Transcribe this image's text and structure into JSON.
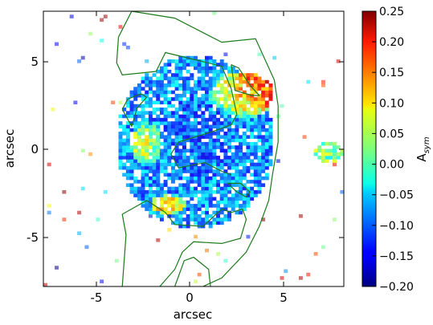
{
  "chart_data": {
    "type": "heatmap",
    "xlabel": "arcsec",
    "ylabel": "arcsec",
    "colorbar_label": "A",
    "colorbar_label_sub": "sym",
    "xlim": [
      -8,
      8
    ],
    "ylim": [
      -8,
      8
    ],
    "x_ticks": [
      -5,
      0,
      5
    ],
    "x_tick_labels": [
      "-5",
      "0",
      "5"
    ],
    "y_ticks": [
      5,
      0,
      -5
    ],
    "y_tick_labels": [
      "5",
      "0",
      "-5"
    ],
    "colorbar_range": [
      -0.2,
      0.25
    ],
    "colorbar_ticks": [
      0.25,
      0.2,
      0.15,
      0.1,
      0.05,
      0.0,
      -0.05,
      -0.1,
      -0.15,
      -0.2
    ],
    "colorbar_tick_labels": [
      "0.25",
      "0.20",
      "0.15",
      "0.10",
      "0.05",
      "0.00",
      "−0.05",
      "−0.10",
      "−0.15",
      "−0.20"
    ],
    "colormap": "jet",
    "grid": false,
    "contour_color": "#1a7a1a",
    "map_regions": [
      {
        "cx": 0.0,
        "cy": 0.3,
        "rx": 4.2,
        "ry": 5.0,
        "value": -0.08
      },
      {
        "cx": 0.2,
        "cy": 0.5,
        "rx": 2.2,
        "ry": 2.6,
        "value": -0.13
      },
      {
        "cx": 2.4,
        "cy": 3.0,
        "rx": 1.8,
        "ry": 1.4,
        "value": 0.16
      },
      {
        "cx": -2.6,
        "cy": 0.2,
        "rx": 0.9,
        "ry": 1.3,
        "value": 0.14
      },
      {
        "cx": -1.4,
        "cy": -3.3,
        "rx": 1.0,
        "ry": 0.6,
        "value": 0.18
      },
      {
        "cx": 7.1,
        "cy": -0.3,
        "rx": 0.8,
        "ry": 0.6,
        "value": 0.02
      }
    ],
    "contours": [
      [
        [
          -4.0,
          6.5
        ],
        [
          -3.3,
          8.0
        ],
        [
          -1.0,
          7.6
        ],
        [
          1.5,
          6.2
        ],
        [
          3.3,
          6.4
        ],
        [
          4.3,
          4.0
        ],
        [
          4.5,
          2.5
        ],
        [
          4.5,
          0.4
        ],
        [
          4.2,
          -1.5
        ],
        [
          4.0,
          -3.0
        ],
        [
          3.5,
          -4.5
        ],
        [
          2.8,
          -6.0
        ],
        [
          1.5,
          -7.5
        ],
        [
          0.5,
          -8.0
        ]
      ],
      [
        [
          -4.0,
          6.5
        ],
        [
          -4.1,
          5.0
        ],
        [
          -3.8,
          4.3
        ],
        [
          -2.0,
          4.5
        ],
        [
          -1.5,
          5.6
        ],
        [
          0.0,
          5.2
        ],
        [
          1.5,
          4.8
        ],
        [
          2.0,
          3.5
        ],
        [
          2.3,
          2.0
        ],
        [
          2.0,
          1.4
        ],
        [
          1.0,
          1.0
        ],
        [
          -0.8,
          0.4
        ],
        [
          -1.2,
          -0.3
        ],
        [
          -0.8,
          -1.1
        ],
        [
          0.6,
          -0.8
        ],
        [
          1.5,
          -1.3
        ],
        [
          2.0,
          -1.5
        ]
      ],
      [
        [
          -3.8,
          2.3
        ],
        [
          -3.5,
          2.9
        ],
        [
          -2.8,
          3.2
        ],
        [
          -2.5,
          3.0
        ],
        [
          -3.0,
          2.4
        ],
        [
          -3.3,
          1.3
        ],
        [
          -3.8,
          2.3
        ]
      ],
      [
        [
          2.0,
          4.9
        ],
        [
          2.4,
          4.7
        ],
        [
          3.0,
          3.7
        ],
        [
          3.5,
          3.1
        ],
        [
          3.1,
          3.1
        ],
        [
          2.2,
          3.4
        ],
        [
          2.0,
          4.9
        ]
      ],
      [
        [
          -3.8,
          -8.0
        ],
        [
          -3.6,
          -5.0
        ],
        [
          -3.8,
          -3.8
        ],
        [
          -2.5,
          -3.0
        ],
        [
          -1.5,
          -3.7
        ],
        [
          -1.0,
          -4.4
        ],
        [
          0.5,
          -4.5
        ],
        [
          1.5,
          -3.5
        ],
        [
          2.0,
          -3.7
        ],
        [
          2.6,
          -3.5
        ],
        [
          2.8,
          -4.1
        ],
        [
          2.5,
          -5.2
        ],
        [
          1.5,
          -5.5
        ],
        [
          0.0,
          -5.4
        ],
        [
          -0.6,
          -6.0
        ],
        [
          -1.0,
          -7.0
        ],
        [
          -1.8,
          -8.0
        ]
      ],
      [
        [
          -1.0,
          -8.0
        ],
        [
          -0.5,
          -6.5
        ],
        [
          0.0,
          -6.3
        ],
        [
          0.8,
          -7.0
        ],
        [
          0.9,
          -8.0
        ]
      ],
      [
        [
          1.8,
          -2.0
        ],
        [
          2.3,
          -2.5
        ],
        [
          2.8,
          -2.8
        ],
        [
          3.0,
          -2.5
        ],
        [
          2.5,
          -2.0
        ],
        [
          1.8,
          -2.0
        ]
      ]
    ]
  }
}
